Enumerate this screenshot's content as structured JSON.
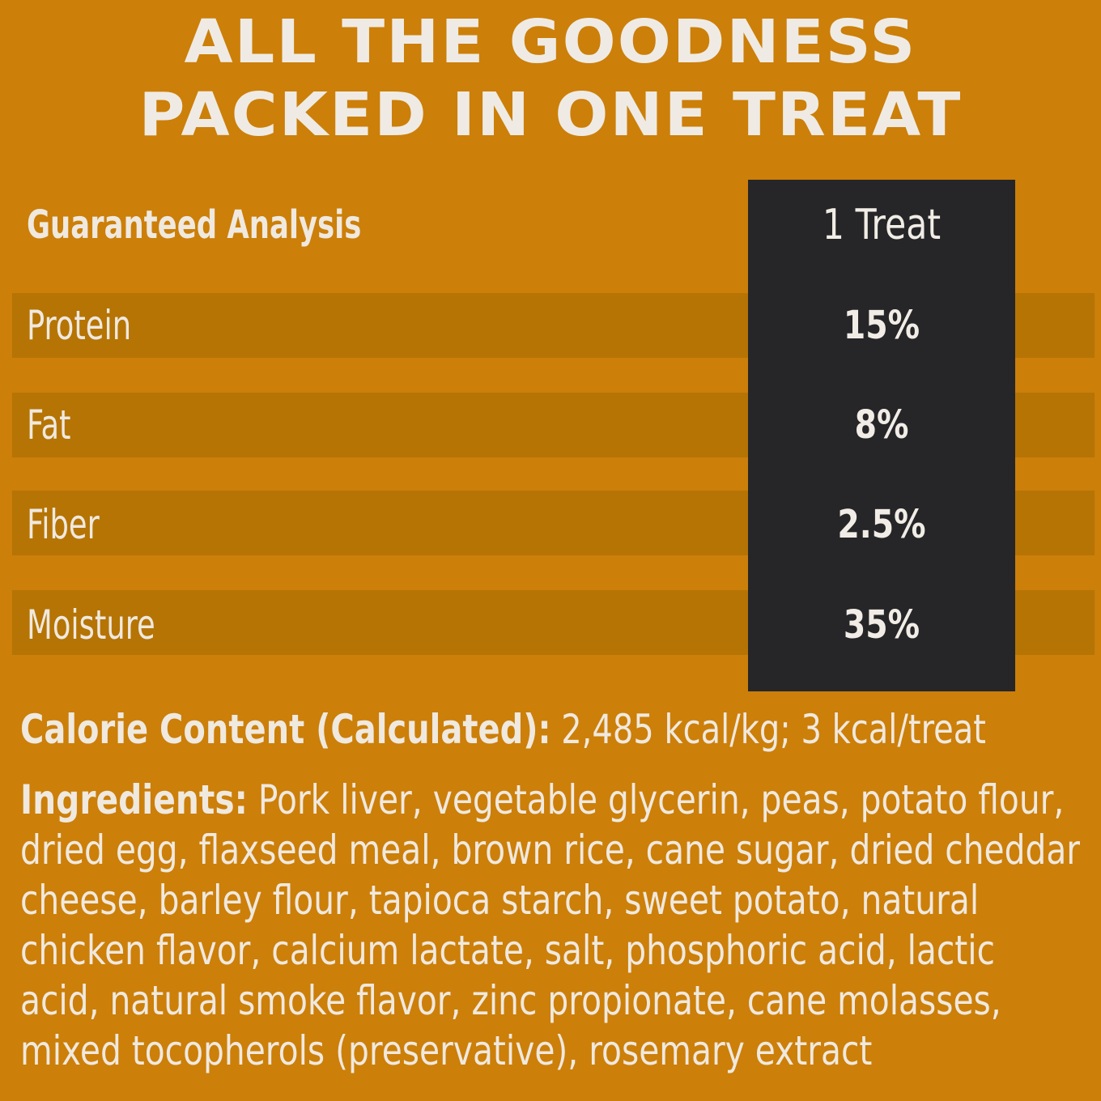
{
  "headline": {
    "line1": "ALL THE GOODNESS",
    "line2": "PACKED IN ONE TREAT"
  },
  "table": {
    "header_label": "Guaranteed Analysis",
    "header_value": "1 Treat",
    "rows": [
      {
        "label": "Protein",
        "value": "15%"
      },
      {
        "label": "Fat",
        "value": "8%"
      },
      {
        "label": "Fiber",
        "value": "2.5%"
      },
      {
        "label": "Moisture",
        "value": "35%"
      }
    ]
  },
  "calorie": {
    "label": "Calorie Content (Calculated):",
    "value": "2,485 kcal/kg; 3 kcal/treat"
  },
  "ingredients": {
    "label": "Ingredients:",
    "lines": [
      "Pork liver, vegetable glycerin, peas, potato flour,",
      "dried egg, flaxseed meal, brown rice, cane sugar, dried cheddar",
      "cheese, barley flour, tapioca starch, sweet potato, natural",
      "chicken flavor, calcium lactate, salt, phosphoric acid, lactic",
      "acid, natural smoke flavor, zinc propionate, cane molasses,",
      "mixed tocopherols (preservative), rosemary extract"
    ]
  },
  "colors": {
    "background": "#cc7f09",
    "stripe": "#b57404",
    "value_column": "#262629",
    "text": "#efe9df"
  }
}
